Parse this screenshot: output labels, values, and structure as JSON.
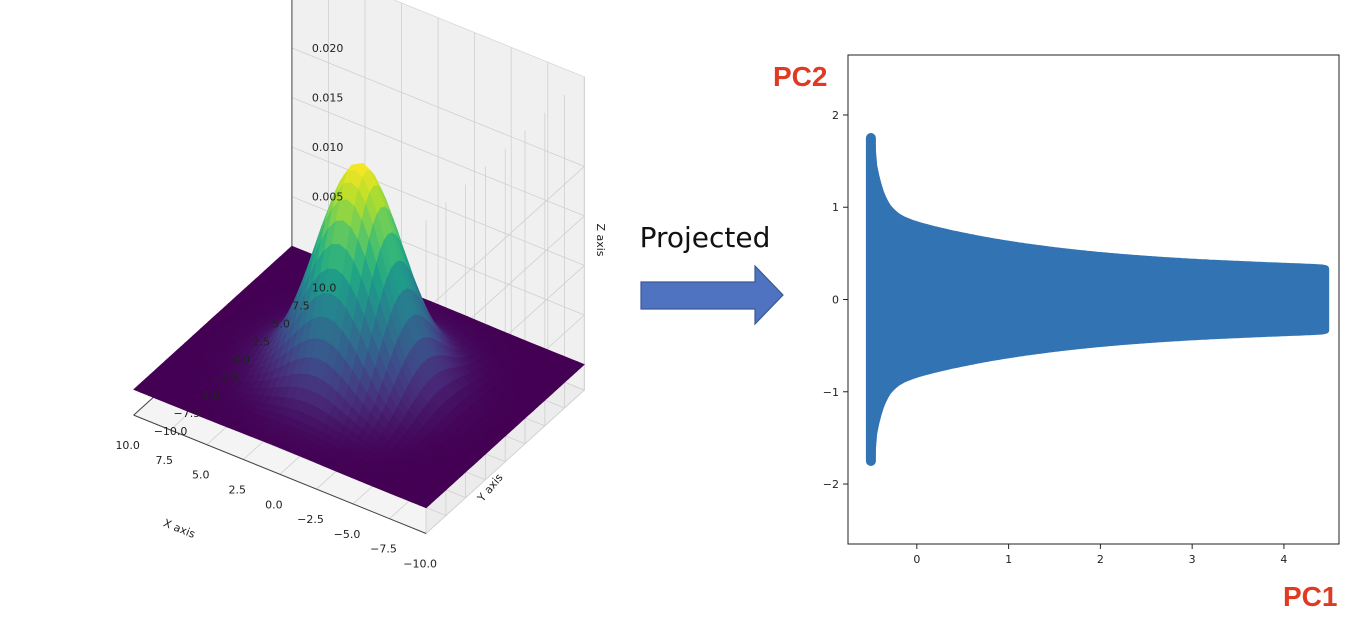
{
  "chart_data": [
    {
      "type": "surface3d",
      "colormap": "viridis",
      "xlabel": "X axis",
      "ylabel": "Y axis",
      "zlabel": "Z axis",
      "x_range": [
        -10,
        10
      ],
      "y_range": [
        -10,
        10
      ],
      "x_ticks": [
        "−10.0",
        "−7.5",
        "−5.0",
        "−2.5",
        "0.0",
        "2.5",
        "5.0",
        "7.5",
        "10.0"
      ],
      "y_ticks": [
        "−10.0",
        "−7.5",
        "−5.0",
        "−2.5",
        "0.0",
        "2.5",
        "5.0",
        "7.5",
        "10.0"
      ],
      "z_ticks": [
        "0.005",
        "0.010",
        "0.015",
        "0.020"
      ],
      "z_max": 0.0215,
      "peak": {
        "x": 0,
        "y": 0
      },
      "spread": {
        "x": 2.5,
        "y": 3.0
      }
    },
    {
      "type": "scatter",
      "color": "#3274b3",
      "x_ticks": [
        "0",
        "1",
        "2",
        "3",
        "4"
      ],
      "y_ticks": [
        "−2",
        "−1",
        "0",
        "1",
        "2"
      ],
      "xlim": [
        -0.75,
        4.6
      ],
      "ylim": [
        -2.65,
        2.65
      ],
      "shape": {
        "x_min": -0.5,
        "x_max": 4.45,
        "stem_y_range": [
          -1.75,
          1.75
        ]
      },
      "xlabel": "PC1",
      "ylabel": "PC2"
    }
  ],
  "annotation": {
    "text": "Projected"
  },
  "colors": {
    "arrow_fill": "#4f73c1",
    "arrow_stroke": "#3a5a95",
    "pc_label": "#e03a22"
  }
}
